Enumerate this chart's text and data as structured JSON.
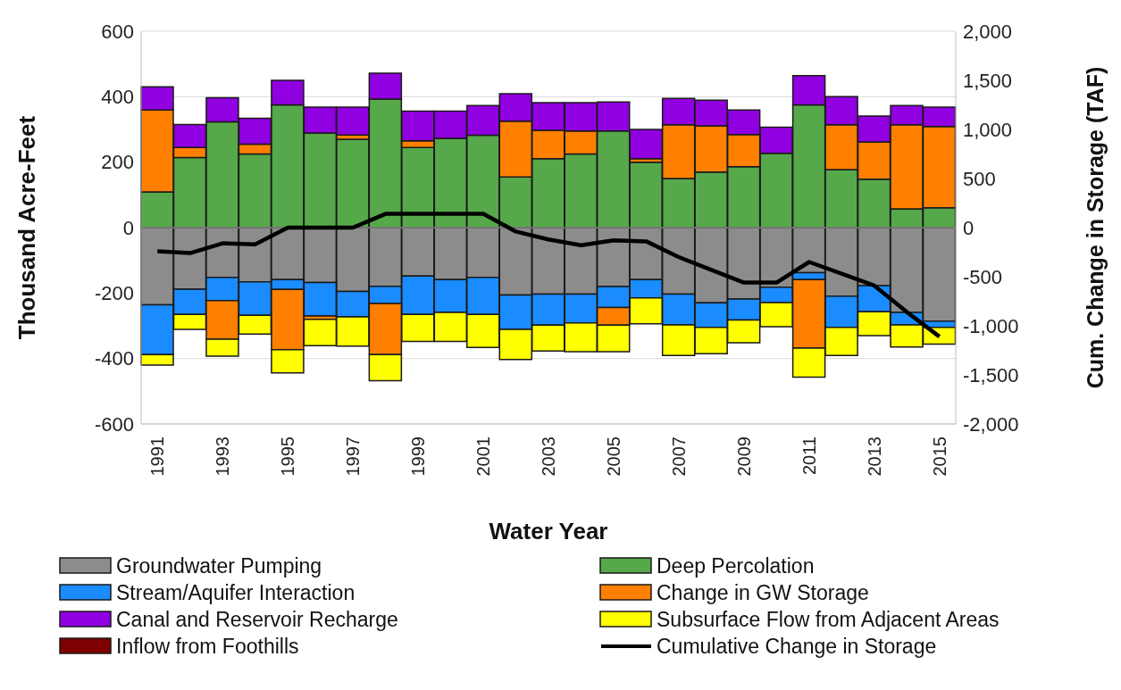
{
  "chart_data": {
    "type": "bar",
    "stacked": true,
    "xlabel": "Water Year",
    "ylabel": "Thousand Acre-Feet",
    "y2label": "Cum. Change in Storage (TAF)",
    "categories": [
      "1991",
      null,
      "1993",
      null,
      "1995",
      null,
      "1997",
      null,
      "1999",
      null,
      "2001",
      null,
      "2003",
      null,
      "2005",
      null,
      "2007",
      null,
      "2009",
      null,
      "2011",
      null,
      "2013",
      null,
      "2015"
    ],
    "series": [
      {
        "name": "Groundwater Pumping",
        "color": "#8c8c8c",
        "values": [
          -236,
          -188,
          -152,
          -166,
          -159,
          -168,
          -195,
          -179,
          -148,
          -159,
          -152,
          -206,
          -203,
          -203,
          -180,
          -159,
          -203,
          -230,
          -218,
          -182,
          -138,
          -209,
          -177,
          -259,
          -286
        ]
      },
      {
        "name": "Deep Percolation",
        "color": "#56a84a",
        "values": [
          109,
          214,
          323,
          225,
          375,
          289,
          270,
          393,
          245,
          273,
          282,
          155,
          211,
          225,
          295,
          200,
          150,
          170,
          186,
          227,
          375,
          177,
          148,
          57,
          61
        ]
      },
      {
        "name": "Stream/Aquifer Interaction",
        "color": "#1a8cff",
        "values": [
          -152,
          -77,
          -71,
          -102,
          -30,
          -102,
          -78,
          -53,
          -117,
          -100,
          -113,
          -105,
          -95,
          -88,
          -64,
          -56,
          -94,
          -75,
          -64,
          -47,
          -21,
          -96,
          -80,
          -38,
          -19
        ]
      },
      {
        "name": "Change in GW Storage",
        "color": "#ff8000",
        "values": [
          250,
          31,
          -118,
          30,
          -184,
          -10,
          13,
          -156,
          20,
          0,
          0,
          170,
          86,
          70,
          -54,
          11,
          164,
          141,
          98,
          0,
          -209,
          137,
          114,
          257,
          248
        ]
      },
      {
        "name": "Canal and Reservoir Recharge",
        "color": "#9000e0",
        "values": [
          71,
          70,
          74,
          79,
          75,
          79,
          85,
          79,
          91,
          83,
          91,
          84,
          85,
          87,
          89,
          89,
          81,
          78,
          75,
          80,
          89,
          86,
          79,
          59,
          59
        ]
      },
      {
        "name": "Subsurface Flow from Adjacent Areas",
        "color": "#ffff00",
        "values": [
          -32,
          -46,
          -52,
          -57,
          -71,
          -81,
          -89,
          -80,
          -83,
          -89,
          -101,
          -92,
          -79,
          -88,
          -81,
          -79,
          -94,
          -80,
          -70,
          -74,
          -89,
          -86,
          -73,
          -68,
          -51
        ]
      },
      {
        "name": "Inflow from Foothills",
        "color": "#7f0000",
        "values": [
          0,
          0,
          0,
          0,
          0,
          0,
          0,
          0,
          0,
          0,
          0,
          0,
          0,
          0,
          0,
          0,
          0,
          0,
          0,
          0,
          0,
          0,
          0,
          0,
          0
        ]
      },
      {
        "name": "Cumulative Change in Storage",
        "type": "line",
        "axis": "y2",
        "color": "#000000",
        "marker": "none",
        "values": [
          -240,
          -260,
          -160,
          -170,
          0,
          0,
          0,
          140,
          140,
          140,
          140,
          -40,
          -120,
          -180,
          -130,
          -140,
          -300,
          -430,
          -560,
          -560,
          -350,
          -470,
          -590,
          -860,
          -1110
        ]
      }
    ],
    "ylim": [
      -600,
      600
    ],
    "yticks": [
      -600,
      -400,
      -200,
      0,
      200,
      400,
      600
    ],
    "y2lim": [
      -2000,
      2000
    ],
    "y2ticks": [
      {
        "value": -2000,
        "label": "-2,000"
      },
      {
        "value": -1500,
        "label": "-1,500"
      },
      {
        "value": -1000,
        "label": "-1,000"
      },
      -500,
      0,
      500,
      {
        "value": 1000,
        "label": "1,000"
      },
      {
        "value": 1500,
        "label": "1,500"
      },
      {
        "value": 2000,
        "label": "2,000"
      }
    ],
    "grid": "y",
    "legend": "bottom"
  }
}
